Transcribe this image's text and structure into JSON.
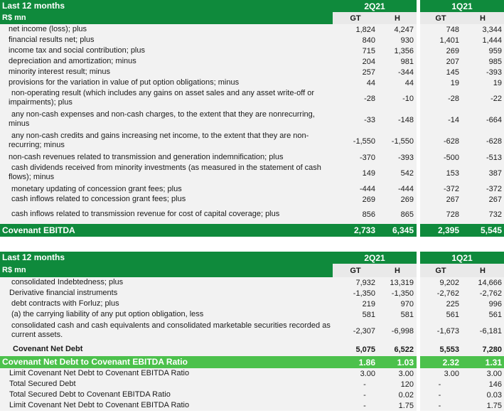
{
  "ebitda_table": {
    "header": {
      "title": "Last 12 months",
      "period_a": "2Q21",
      "period_b": "1Q21"
    },
    "subheader": {
      "unit": "R$ mn",
      "col_gt": "GT",
      "col_h": "H"
    },
    "rows": [
      {
        "label": "net income (loss); plus",
        "a_gt": "1,824",
        "a_h": "4,247",
        "b_gt": "748",
        "b_h": "3,344"
      },
      {
        "label": "financial results net; plus",
        "a_gt": "840",
        "a_h": "930",
        "b_gt": "1,401",
        "b_h": "1,444"
      },
      {
        "label": "income tax and social contribution; plus",
        "a_gt": "715",
        "a_h": "1,356",
        "b_gt": "269",
        "b_h": "959"
      },
      {
        "label": "depreciation and amortization; minus",
        "a_gt": "204",
        "a_h": "981",
        "b_gt": "207",
        "b_h": "985"
      },
      {
        "label": "minority interest result; minus",
        "a_gt": "257",
        "a_h": "-344",
        "b_gt": "145",
        "b_h": "-393"
      },
      {
        "label": "provisions for the variation in value of put option obligations; minus",
        "a_gt": "44",
        "a_h": "44",
        "b_gt": "19",
        "b_h": "19"
      },
      {
        "label": "non-operating result (which includes any gains on asset sales and any asset write-off or impairments); plus",
        "a_gt": "-28",
        "a_h": "-10",
        "b_gt": "-28",
        "b_h": "-22"
      },
      {
        "label": "any non-cash expenses and non-cash charges, to the extent that they are nonrecurring, minus",
        "a_gt": "-33",
        "a_h": "-148",
        "b_gt": "-14",
        "b_h": "-664"
      },
      {
        "label": "any non-cash credits and gains increasing net income, to the extent that they are non-recurring; minus",
        "a_gt": "-1,550",
        "a_h": "-1,550",
        "b_gt": "-628",
        "b_h": "-628"
      },
      {
        "label": "non-cash revenues related to transmission and generation indemnification; plus",
        "a_gt": "-370",
        "a_h": "-393",
        "b_gt": "-500",
        "b_h": "-513"
      },
      {
        "label": "cash dividends received from minority investments (as measured in the statement of cash flows); minus",
        "a_gt": "149",
        "a_h": "542",
        "b_gt": "153",
        "b_h": "387"
      },
      {
        "label": "monetary updating of concession grant fees; plus",
        "a_gt": "-444",
        "a_h": "-444",
        "b_gt": "-372",
        "b_h": "-372"
      },
      {
        "label": "cash inflows related to concession grant fees; plus",
        "a_gt": "269",
        "a_h": "269",
        "b_gt": "267",
        "b_h": "267"
      },
      {
        "label": "cash inflows related to transmission revenue for cost of capital coverage; plus",
        "a_gt": "856",
        "a_h": "865",
        "b_gt": "728",
        "b_h": "732"
      }
    ],
    "total": {
      "label": "Covenant EBITDA",
      "a_gt": "2,733",
      "a_h": "6,345",
      "b_gt": "2,395",
      "b_h": "5,545"
    }
  },
  "debt_table": {
    "header": {
      "title": "Last 12 months",
      "period_a": "2Q21",
      "period_b": "1Q21"
    },
    "subheader": {
      "unit": "R$ mn",
      "col_gt": "GT",
      "col_h": "H"
    },
    "rows": [
      {
        "label": "consolidated Indebtedness; plus",
        "a_gt": "7,932",
        "a_h": "13,319",
        "b_gt": "9,202",
        "b_h": "14,666"
      },
      {
        "label": "Derivative financial instruments",
        "a_gt": "-1,350",
        "a_h": "-1,350",
        "b_gt": "-2,762",
        "b_h": "-2,762"
      },
      {
        "label": "debt contracts with Forluz; plus",
        "a_gt": "219",
        "a_h": "970",
        "b_gt": "225",
        "b_h": "996"
      },
      {
        "label": "(a) the carrying liability of any put option obligation, less",
        "a_gt": "581",
        "a_h": "581",
        "b_gt": "561",
        "b_h": "561"
      },
      {
        "label": "consolidated cash and cash equivalents and consolidated marketable securities recorded as current assets.",
        "a_gt": "-2,307",
        "a_h": "-6,998",
        "b_gt": "-1,673",
        "b_h": "-6,181"
      }
    ],
    "net_debt": {
      "label": "Covenant Net Debt",
      "a_gt": "5,075",
      "a_h": "6,522",
      "b_gt": "5,553",
      "b_h": "7,280"
    },
    "ratio": {
      "label": "Covenant Net Debt to Covenant EBITDA Ratio",
      "a_gt": "1.86",
      "a_h": "1.03",
      "b_gt": "2.32",
      "b_h": "1.31"
    },
    "tail_rows": [
      {
        "label": "Limit Covenant Net Debt to Covenant EBITDA Ratio",
        "a_gt": "3.00",
        "a_h": "3.00",
        "b_gt": "3.00",
        "b_h": "3.00"
      },
      {
        "label": "Total Secured Debt",
        "a_gt": "-",
        "a_h": "120",
        "b_gt": "-",
        "b_h": "146"
      },
      {
        "label": "Total Secured Debt to Covenant EBITDA Ratio",
        "a_gt": "-",
        "a_h": "0.02",
        "b_gt": "-",
        "b_h": "0.03"
      },
      {
        "label": "Limit Covenant Net Debt to Covenant EBITDA Ratio",
        "a_gt": "-",
        "a_h": "1.75",
        "b_gt": "-",
        "b_h": "1.75"
      }
    ]
  },
  "colors": {
    "dark_green": "#0f8a3c",
    "light_green": "#4cc14c",
    "band_grey": "#f2f2f2"
  }
}
